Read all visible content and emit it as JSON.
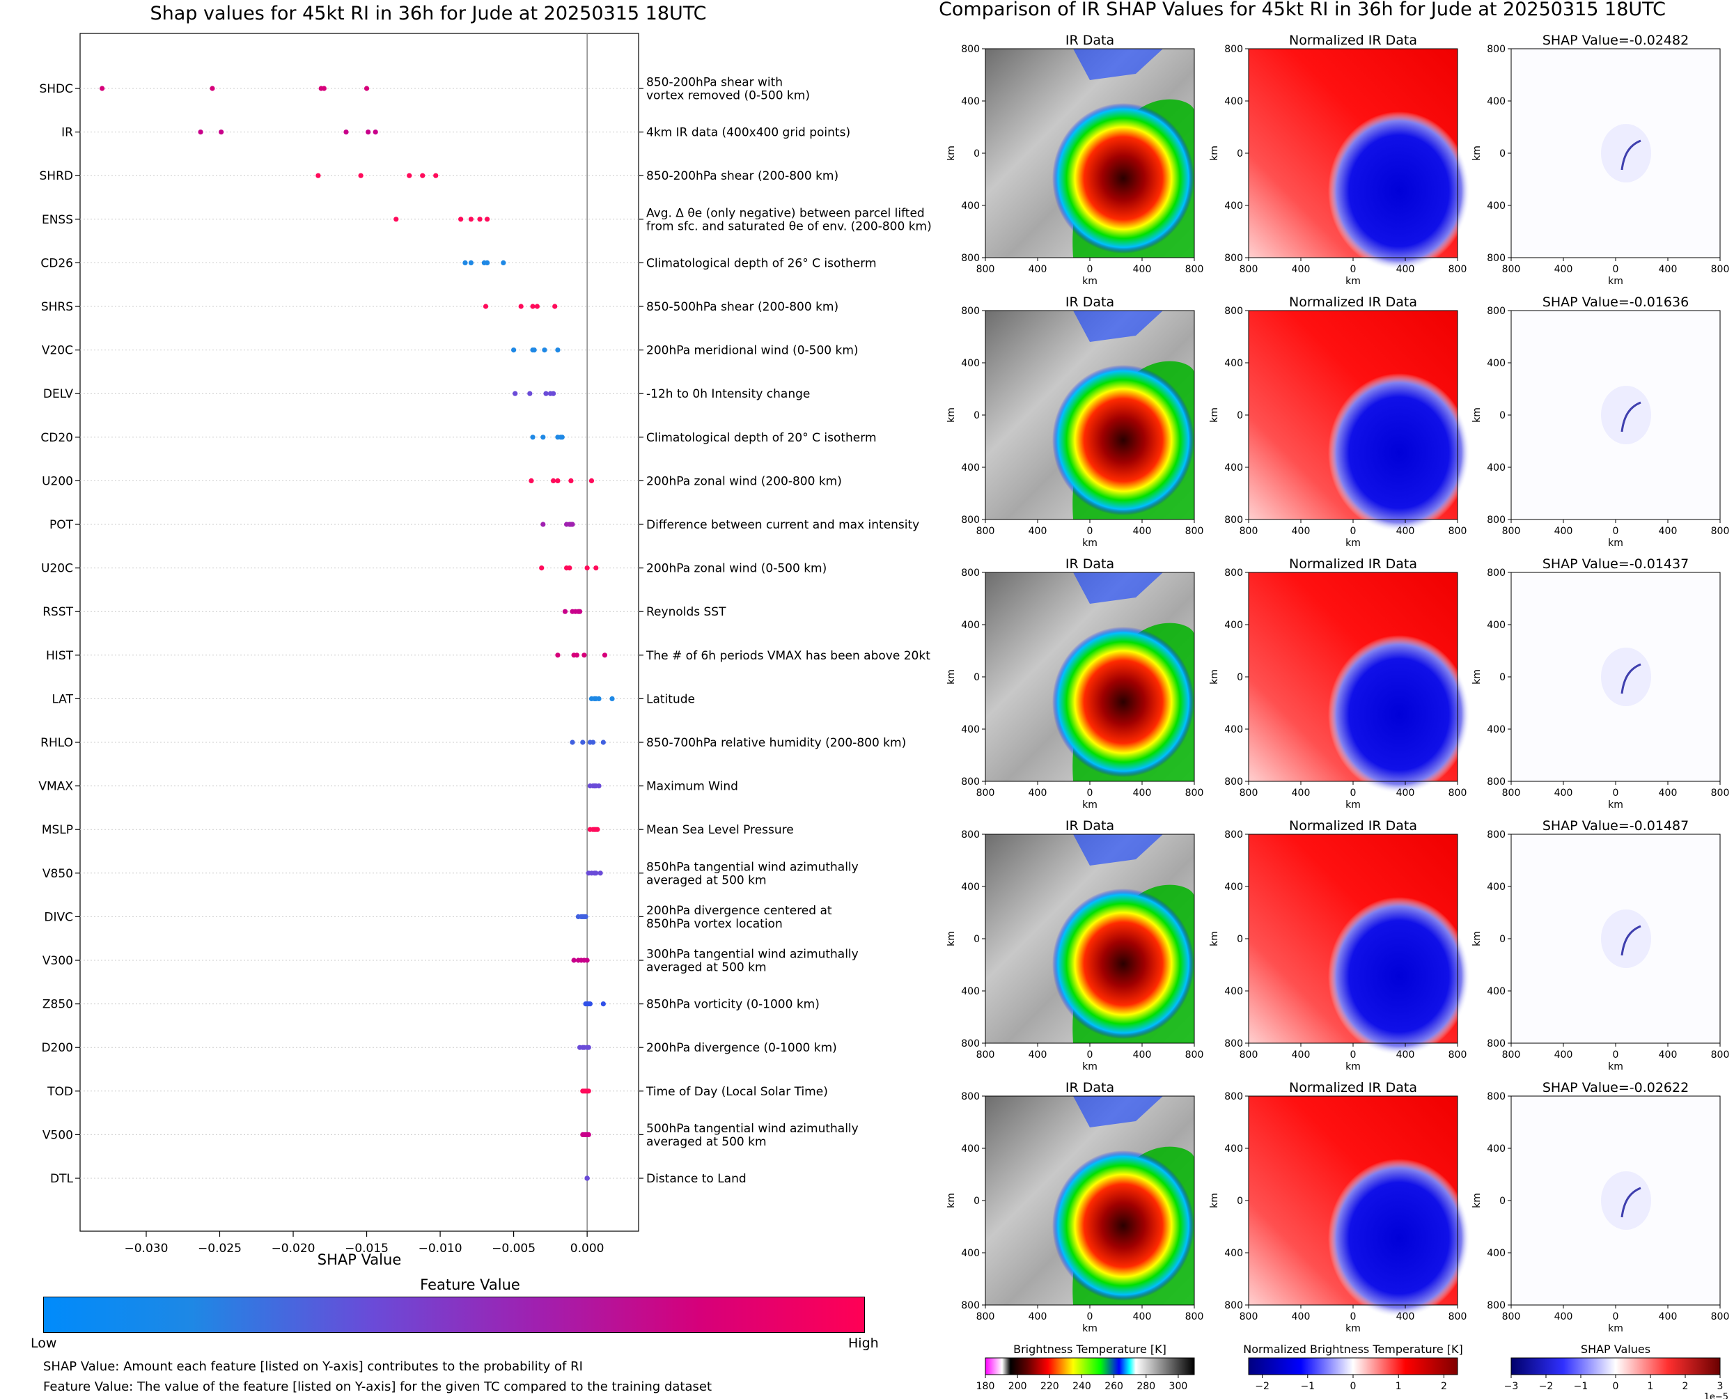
{
  "left_title": "Shap values for 45kt RI in 36h for Jude at 20250315 18UTC",
  "right_title": "Comparison of IR SHAP Values for 45kt RI in 36h for Jude at 20250315 18UTC",
  "chart_data": [
    {
      "type": "scatter",
      "title": "Shap values for 45kt RI in 36h for Jude at 20250315 18UTC",
      "xlabel": "SHAP Value",
      "xlim": [
        -0.0345,
        0.0035
      ],
      "xticks": [
        -0.03,
        -0.025,
        -0.02,
        -0.015,
        -0.01,
        -0.005,
        0.0
      ],
      "xtick_labels": [
        "−0.030",
        "−0.025",
        "−0.020",
        "−0.015",
        "−0.010",
        "−0.005",
        "0.000"
      ],
      "features": [
        {
          "code": "SHDC",
          "desc": [
            "850-200hPa shear with",
            "vortex removed (0-500 km)"
          ],
          "color": "#d6007a",
          "values": [
            -0.033,
            -0.0255,
            -0.0181,
            -0.0179,
            -0.015
          ]
        },
        {
          "code": "IR",
          "desc": [
            "4km IR data (400x400 grid points)"
          ],
          "color": "#c8008a",
          "values": [
            -0.0263,
            -0.0249,
            -0.0164,
            -0.0149,
            -0.0144
          ]
        },
        {
          "code": "SHRD",
          "desc": [
            "850-200hPa shear (200-800 km)"
          ],
          "color": "#ff0a5a",
          "values": [
            -0.0183,
            -0.0154,
            -0.0121,
            -0.0112,
            -0.0103
          ]
        },
        {
          "code": "ENSS",
          "desc": [
            "Avg. Δ θe (only negative) between parcel lifted",
            "from sfc. and saturated θe of env. (200-800 km)"
          ],
          "color": "#ff0a5a",
          "values": [
            -0.013,
            -0.0086,
            -0.0079,
            -0.0073,
            -0.0068
          ]
        },
        {
          "code": "CD26",
          "desc": [
            "Climatological depth of 26° C isotherm"
          ],
          "color": "#1e88e5",
          "values": [
            -0.0083,
            -0.0079,
            -0.007,
            -0.0068,
            -0.0057
          ]
        },
        {
          "code": "SHRS",
          "desc": [
            "850-500hPa shear (200-800 km)"
          ],
          "color": "#ff0a5a",
          "values": [
            -0.0069,
            -0.0045,
            -0.0037,
            -0.0034,
            -0.0022
          ]
        },
        {
          "code": "V20C",
          "desc": [
            "200hPa meridional wind (0-500 km)"
          ],
          "color": "#1e88e5",
          "values": [
            -0.005,
            -0.0037,
            -0.0036,
            -0.0029,
            -0.002
          ]
        },
        {
          "code": "DELV",
          "desc": [
            "-12h to 0h Intensity change"
          ],
          "color": "#6a4bd8",
          "values": [
            -0.0049,
            -0.0039,
            -0.0028,
            -0.0025,
            -0.0023
          ]
        },
        {
          "code": "CD20",
          "desc": [
            "Climatological depth of 20° C isotherm"
          ],
          "color": "#1e88e5",
          "values": [
            -0.0037,
            -0.003,
            -0.002,
            -0.0018,
            -0.0017
          ]
        },
        {
          "code": "U200",
          "desc": [
            "200hPa zonal wind (200-800 km)"
          ],
          "color": "#ff0a5a",
          "values": [
            -0.0038,
            -0.0023,
            -0.002,
            -0.0011,
            0.0003
          ]
        },
        {
          "code": "POT",
          "desc": [
            "Difference between current and max intensity"
          ],
          "color": "#a020b0",
          "values": [
            -0.003,
            -0.0014,
            -0.0012,
            -0.0011,
            -0.001
          ]
        },
        {
          "code": "U20C",
          "desc": [
            "200hPa zonal wind (0-500 km)"
          ],
          "color": "#ff0a5a",
          "values": [
            -0.0031,
            -0.0014,
            -0.0012,
            0.0,
            0.0006
          ]
        },
        {
          "code": "RSST",
          "desc": [
            "Reynolds SST"
          ],
          "color": "#c8008a",
          "values": [
            -0.0015,
            -0.001,
            -0.0008,
            -0.0006,
            -0.0005
          ]
        },
        {
          "code": "HIST",
          "desc": [
            "The # of 6h periods VMAX has been above 20kt"
          ],
          "color": "#d6007a",
          "values": [
            -0.002,
            -0.0009,
            -0.0007,
            -0.0002,
            0.0012
          ]
        },
        {
          "code": "LAT",
          "desc": [
            "Latitude"
          ],
          "color": "#1e88e5",
          "values": [
            0.0003,
            0.0005,
            0.0006,
            0.0008,
            0.0017
          ]
        },
        {
          "code": "RHLO",
          "desc": [
            "850-700hPa relative humidity (200-800 km)"
          ],
          "color": "#4060e0",
          "values": [
            -0.001,
            -0.0003,
            0.0002,
            0.0004,
            0.0011
          ]
        },
        {
          "code": "VMAX",
          "desc": [
            "Maximum Wind"
          ],
          "color": "#6a4bd8",
          "values": [
            0.0002,
            0.0004,
            0.0005,
            0.0006,
            0.0008
          ]
        },
        {
          "code": "MSLP",
          "desc": [
            "Mean Sea Level Pressure"
          ],
          "color": "#ff0a5a",
          "values": [
            0.0002,
            0.0004,
            0.0005,
            0.0006,
            0.0007
          ]
        },
        {
          "code": "V850",
          "desc": [
            "850hPa tangential wind azimuthally",
            "averaged at 500 km"
          ],
          "color": "#6a4bd8",
          "values": [
            0.0001,
            0.0003,
            0.0005,
            0.0006,
            0.0009
          ]
        },
        {
          "code": "DIVC",
          "desc": [
            "200hPa divergence centered at",
            "850hPa vortex location"
          ],
          "color": "#4060e0",
          "values": [
            -0.0006,
            -0.0004,
            -0.0003,
            -0.0002,
            -0.0001
          ]
        },
        {
          "code": "V300",
          "desc": [
            "300hPa tangential wind azimuthally",
            "averaged at 500 km"
          ],
          "color": "#c8008a",
          "values": [
            -0.0009,
            -0.0006,
            -0.0004,
            -0.0002,
            0.0
          ]
        },
        {
          "code": "Z850",
          "desc": [
            "850hPa vorticity (0-1000 km)"
          ],
          "color": "#3050e8",
          "values": [
            -0.0001,
            0.0,
            0.0001,
            0.0002,
            0.0011
          ]
        },
        {
          "code": "D200",
          "desc": [
            "200hPa divergence (0-1000 km)"
          ],
          "color": "#6a4bd8",
          "values": [
            -0.0005,
            -0.0003,
            -0.0002,
            0.0,
            0.0001
          ]
        },
        {
          "code": "TOD",
          "desc": [
            "Time of Day (Local Solar Time)"
          ],
          "color": "#ff0a5a",
          "values": [
            -0.0003,
            -0.0002,
            -0.0001,
            0.0,
            0.0001
          ]
        },
        {
          "code": "V500",
          "desc": [
            "500hPa tangential wind azimuthally",
            "averaged at 500 km"
          ],
          "color": "#c8008a",
          "values": [
            -0.0003,
            -0.0002,
            -0.0001,
            0.0,
            0.0001
          ]
        },
        {
          "code": "DTL",
          "desc": [
            "Distance to Land"
          ],
          "color": "#6a4bd8",
          "values": [
            0.0,
            0.0,
            0.0,
            0.0,
            0.0
          ]
        }
      ]
    },
    {
      "type": "heatmap",
      "title": "Comparison of IR SHAP Values for 45kt RI in 36h for Jude at 20250315 18UTC",
      "panel_titles": [
        "IR Data",
        "Normalized IR Data"
      ],
      "shap_titles": [
        "SHAP Value=-0.02482",
        "SHAP Value=-0.01636",
        "SHAP Value=-0.01437",
        "SHAP Value=-0.01487",
        "SHAP Value=-0.02622"
      ],
      "axis_label": "km",
      "axis_ticks": [
        "800",
        "400",
        "0",
        "400",
        "800"
      ]
    }
  ],
  "colorbar": {
    "title": "Feature Value",
    "low": "Low",
    "high": "High",
    "colors": [
      "#008bfb",
      "#1e88e5",
      "#6a4bd8",
      "#a020b0",
      "#d6007a",
      "#ff0055"
    ]
  },
  "notes": [
    "SHAP Value: Amount each feature [listed on Y-axis] contributes to the probability of RI",
    "Feature Value: The value of the feature [listed on Y-axis] for the given TC compared to the training dataset"
  ],
  "bottom_colorbars": [
    {
      "title": "Brightness Temperature [K]",
      "ticks": [
        "180",
        "200",
        "220",
        "240",
        "260",
        "280",
        "300"
      ],
      "range": [
        180,
        310
      ]
    },
    {
      "title": "Normalized Brightness Temperature [K]",
      "ticks": [
        "−2",
        "−1",
        "0",
        "1",
        "2"
      ],
      "range": [
        -2.3,
        2.3
      ]
    },
    {
      "title": "SHAP Values",
      "ticks": [
        "−3",
        "−2",
        "−1",
        "0",
        "1",
        "2",
        "3"
      ],
      "range": [
        -3,
        3
      ],
      "exponent": "1e−5"
    }
  ]
}
